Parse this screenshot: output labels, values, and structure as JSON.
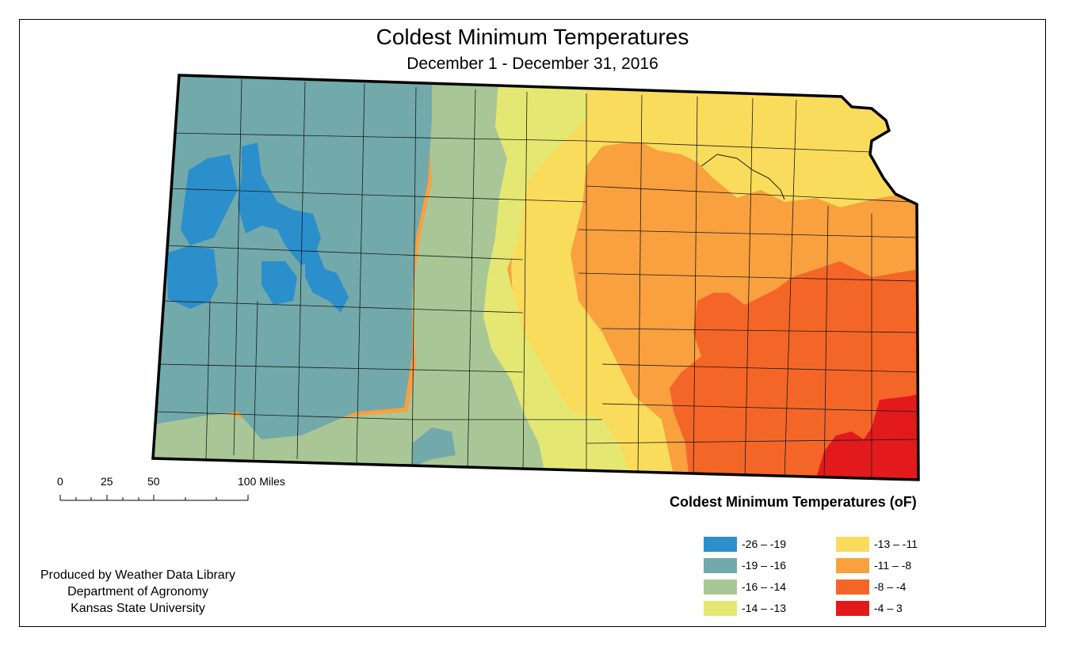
{
  "map": {
    "title": "Coldest Minimum Temperatures",
    "subtitle": "December 1 - December 31, 2016"
  },
  "scale_bar": {
    "labels": [
      "0",
      "25",
      "50",
      "100 Miles"
    ]
  },
  "legend": {
    "title": "Coldest Minimum Temperatures (oF)",
    "items": [
      {
        "label": "-26 – -19",
        "color": "#2b8fcb"
      },
      {
        "label": "-19 – -16",
        "color": "#72a9ab"
      },
      {
        "label": "-16 – -14",
        "color": "#a9c796"
      },
      {
        "label": "-14 – -13",
        "color": "#e4e873"
      },
      {
        "label": "-13 – -11",
        "color": "#fadc5c"
      },
      {
        "label": "-11 – -8",
        "color": "#f9a03f"
      },
      {
        "label": "-8 – -4",
        "color": "#f46628"
      },
      {
        "label": "-4 – 3",
        "color": "#e31a1c"
      }
    ]
  },
  "credits": {
    "line1": "Produced by Weather Data Library",
    "line2": "Department of Agronomy",
    "line3": "Kansas State University"
  }
}
